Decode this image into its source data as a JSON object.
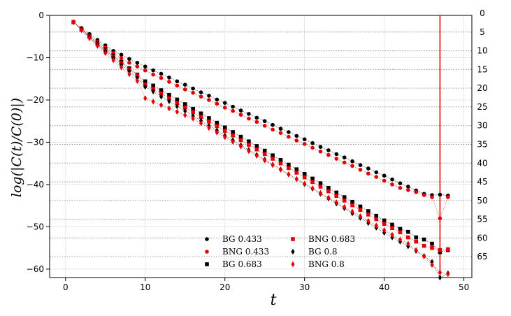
{
  "chart_data": {
    "type": "scatter",
    "xlabel": "t",
    "ylabel": "log(|C(t)/C(0)|)",
    "xlim": [
      -2,
      51
    ],
    "ylim": [
      -62,
      0
    ],
    "xticks": [
      0,
      10,
      20,
      30,
      40,
      50
    ],
    "yticks": [
      0,
      -10,
      -20,
      -30,
      -40,
      -50,
      -60
    ],
    "right_axis_ticks": [
      0,
      5,
      10,
      15,
      20,
      25,
      30,
      35,
      40,
      45,
      50,
      55,
      60,
      65
    ],
    "grid": true,
    "legend_position": "bottom-center",
    "vertical_line": {
      "x": 47,
      "color": "#e60000"
    },
    "series": [
      {
        "name": "BG 0.433",
        "color": "#000000",
        "marker": "circle",
        "x": [
          1,
          2,
          3,
          4,
          5,
          6,
          7,
          8,
          9,
          10,
          11,
          12,
          13,
          14,
          15,
          16,
          17,
          18,
          19,
          20,
          21,
          22,
          23,
          24,
          25,
          26,
          27,
          28,
          29,
          30,
          31,
          32,
          33,
          34,
          35,
          36,
          37,
          38,
          39,
          40,
          41,
          42,
          43,
          44,
          45,
          46,
          47,
          48
        ],
        "y": [
          -1.6,
          -3.0,
          -4.4,
          -5.8,
          -7.1,
          -8.4,
          -9.3,
          -10.3,
          -11.2,
          -12.1,
          -13.0,
          -13.8,
          -14.7,
          -15.6,
          -16.4,
          -17.3,
          -18.2,
          -19.0,
          -19.9,
          -20.7,
          -21.6,
          -22.5,
          -23.3,
          -24.2,
          -25.0,
          -25.9,
          -26.8,
          -27.6,
          -28.5,
          -29.3,
          -30.2,
          -31.1,
          -31.9,
          -32.8,
          -33.6,
          -34.5,
          -35.4,
          -36.2,
          -37.1,
          -37.9,
          -38.8,
          -39.7,
          -40.5,
          -41.4,
          -42.2,
          -42.5,
          -42.4,
          -42.6
        ]
      },
      {
        "name": "BNG 0.433",
        "color": "#e60000",
        "marker": "circle",
        "x": [
          1,
          2,
          3,
          4,
          5,
          6,
          7,
          8,
          9,
          10,
          11,
          12,
          13,
          14,
          15,
          16,
          17,
          18,
          19,
          20,
          21,
          22,
          23,
          24,
          25,
          26,
          27,
          28,
          29,
          30,
          31,
          32,
          33,
          34,
          35,
          36,
          37,
          38,
          39,
          40,
          41,
          42,
          43,
          44,
          45,
          46,
          47,
          48
        ],
        "y": [
          -1.6,
          -3.2,
          -4.8,
          -6.3,
          -7.6,
          -8.9,
          -10.1,
          -11.2,
          -12.1,
          -13.0,
          -14.0,
          -14.8,
          -15.7,
          -16.6,
          -17.5,
          -18.3,
          -19.2,
          -20.0,
          -20.9,
          -21.8,
          -22.6,
          -23.5,
          -24.4,
          -25.2,
          -26.1,
          -27.0,
          -27.8,
          -28.7,
          -29.6,
          -30.4,
          -31.3,
          -32.2,
          -33.0,
          -33.9,
          -34.8,
          -35.6,
          -36.5,
          -37.4,
          -38.2,
          -39.1,
          -40.0,
          -40.8,
          -41.3,
          -41.8,
          -42.5,
          -43.0,
          -48.0,
          -43.0
        ]
      },
      {
        "name": "BG 0.683",
        "color": "#000000",
        "marker": "square",
        "x": [
          1,
          2,
          3,
          4,
          5,
          6,
          7,
          8,
          9,
          10,
          11,
          12,
          13,
          14,
          15,
          16,
          17,
          18,
          19,
          20,
          21,
          22,
          23,
          24,
          25,
          26,
          27,
          28,
          29,
          30,
          31,
          32,
          33,
          34,
          35,
          36,
          37,
          38,
          39,
          40,
          41,
          42,
          43,
          44,
          45,
          46,
          47,
          48
        ],
        "y": [
          -1.6,
          -3.3,
          -5.0,
          -6.6,
          -8.0,
          -9.5,
          -11.0,
          -12.5,
          -14.0,
          -15.6,
          -16.6,
          -17.7,
          -18.8,
          -19.9,
          -21.0,
          -22.1,
          -23.2,
          -24.3,
          -25.4,
          -26.5,
          -27.6,
          -28.7,
          -29.8,
          -30.9,
          -32.0,
          -33.1,
          -34.2,
          -35.3,
          -36.4,
          -37.5,
          -38.6,
          -39.7,
          -40.8,
          -41.9,
          -43.0,
          -44.1,
          -45.2,
          -46.3,
          -47.4,
          -48.5,
          -49.5,
          -50.5,
          -51.2,
          -52.5,
          -53.0,
          -54.0,
          -56.0,
          -55.5
        ]
      },
      {
        "name": "BNG 0.683",
        "color": "#e60000",
        "marker": "square",
        "x": [
          1,
          2,
          3,
          4,
          5,
          6,
          7,
          8,
          9,
          10,
          11,
          12,
          13,
          14,
          15,
          16,
          17,
          18,
          19,
          20,
          21,
          22,
          23,
          24,
          25,
          26,
          27,
          28,
          29,
          30,
          31,
          32,
          33,
          34,
          35,
          36,
          37,
          38,
          39,
          40,
          41,
          42,
          43,
          44,
          45,
          46,
          47,
          48
        ],
        "y": [
          -1.6,
          -3.4,
          -5.1,
          -6.8,
          -8.3,
          -9.8,
          -11.3,
          -12.8,
          -14.2,
          -16.4,
          -17.4,
          -18.5,
          -19.6,
          -20.7,
          -21.8,
          -22.9,
          -24.0,
          -25.1,
          -26.2,
          -27.3,
          -28.4,
          -29.5,
          -30.6,
          -31.7,
          -32.8,
          -33.9,
          -35.0,
          -36.1,
          -37.2,
          -38.3,
          -39.4,
          -40.5,
          -41.6,
          -42.7,
          -43.8,
          -44.9,
          -46.0,
          -47.1,
          -48.2,
          -49.3,
          -50.3,
          -51.3,
          -52.5,
          -53.5,
          -54.5,
          -55.0,
          -55.5,
          -55.3
        ]
      },
      {
        "name": "BG 0.8",
        "color": "#000000",
        "marker": "diamond",
        "x": [
          1,
          2,
          3,
          4,
          5,
          6,
          7,
          8,
          9,
          10,
          11,
          12,
          13,
          14,
          15,
          16,
          17,
          18,
          19,
          20,
          21,
          22,
          23,
          24,
          25,
          26,
          27,
          28,
          29,
          30,
          31,
          32,
          33,
          34,
          35,
          36,
          37,
          38,
          39,
          40,
          41,
          42,
          43,
          44,
          45,
          46,
          47,
          48
        ],
        "y": [
          -1.6,
          -3.4,
          -5.2,
          -6.9,
          -8.5,
          -10.1,
          -11.7,
          -13.2,
          -14.8,
          -16.9,
          -18.0,
          -19.2,
          -20.3,
          -21.5,
          -22.6,
          -23.8,
          -24.9,
          -26.1,
          -27.2,
          -28.4,
          -29.5,
          -30.7,
          -31.8,
          -33.0,
          -34.1,
          -35.3,
          -36.4,
          -37.6,
          -38.7,
          -39.9,
          -41.0,
          -42.2,
          -43.3,
          -44.5,
          -45.6,
          -46.8,
          -47.9,
          -49.1,
          -50.2,
          -51.4,
          -52.5,
          -53.5,
          -54.6,
          -55.7,
          -56.9,
          -58.3,
          -62.0,
          -61.0
        ]
      },
      {
        "name": "BNG 0.8",
        "color": "#e60000",
        "marker": "diamond",
        "x": [
          1,
          2,
          3,
          4,
          5,
          6,
          7,
          8,
          9,
          10,
          11,
          12,
          13,
          14,
          15,
          16,
          17,
          18,
          19,
          20,
          21,
          22,
          23,
          24,
          25,
          26,
          27,
          28,
          29,
          30,
          31,
          32,
          33,
          34,
          35,
          36,
          37,
          38,
          39,
          40,
          41,
          42,
          43,
          44,
          45,
          46,
          47,
          48
        ],
        "y": [
          -1.6,
          -3.5,
          -5.4,
          -7.2,
          -8.9,
          -10.6,
          -12.3,
          -13.9,
          -15.5,
          -19.6,
          -20.4,
          -21.2,
          -22.0,
          -22.8,
          -23.6,
          -24.4,
          -25.5,
          -26.6,
          -27.7,
          -28.8,
          -29.9,
          -31.0,
          -32.1,
          -33.2,
          -34.3,
          -35.4,
          -36.5,
          -37.6,
          -38.7,
          -39.8,
          -40.9,
          -42.0,
          -43.1,
          -44.2,
          -45.3,
          -46.4,
          -47.5,
          -48.6,
          -49.7,
          -50.8,
          -51.9,
          -53.0,
          -54.0,
          -55.5,
          -57.0,
          -59.0,
          -60.8,
          -61.2
        ]
      }
    ]
  }
}
